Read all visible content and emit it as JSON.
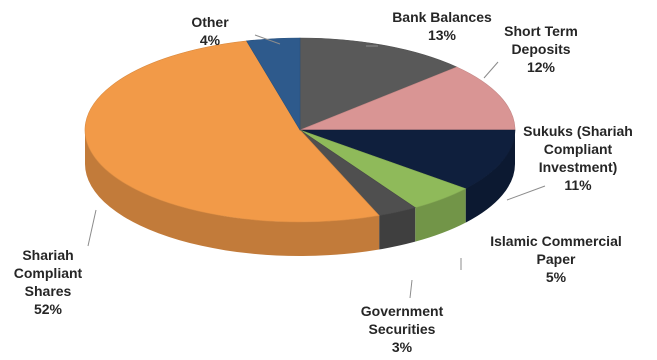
{
  "chart_data": {
    "type": "pie",
    "title": "",
    "slices": [
      {
        "label": "Bank Balances",
        "value": 13,
        "value_label": "13%",
        "color": "#595959"
      },
      {
        "label": "Short Term Deposits",
        "value": 12,
        "value_label": "12%",
        "color": "#d99594"
      },
      {
        "label": "Sukuks (Shariah Compliant Investment)",
        "value": 11,
        "value_label": "11%",
        "color": "#0f1f3d"
      },
      {
        "label": "Islamic Commercial Paper",
        "value": 5,
        "value_label": "5%",
        "color": "#8fba5a"
      },
      {
        "label": "Government Securities",
        "value": 3,
        "value_label": "3%",
        "color": "#4f4f4f"
      },
      {
        "label": "Shariah Compliant Shares",
        "value": 52,
        "value_label": "52%",
        "color": "#f29a48"
      },
      {
        "label": "Other",
        "value": 4,
        "value_label": "4%",
        "color": "#2e5a8c"
      }
    ],
    "style": "3d",
    "legend": "none"
  }
}
